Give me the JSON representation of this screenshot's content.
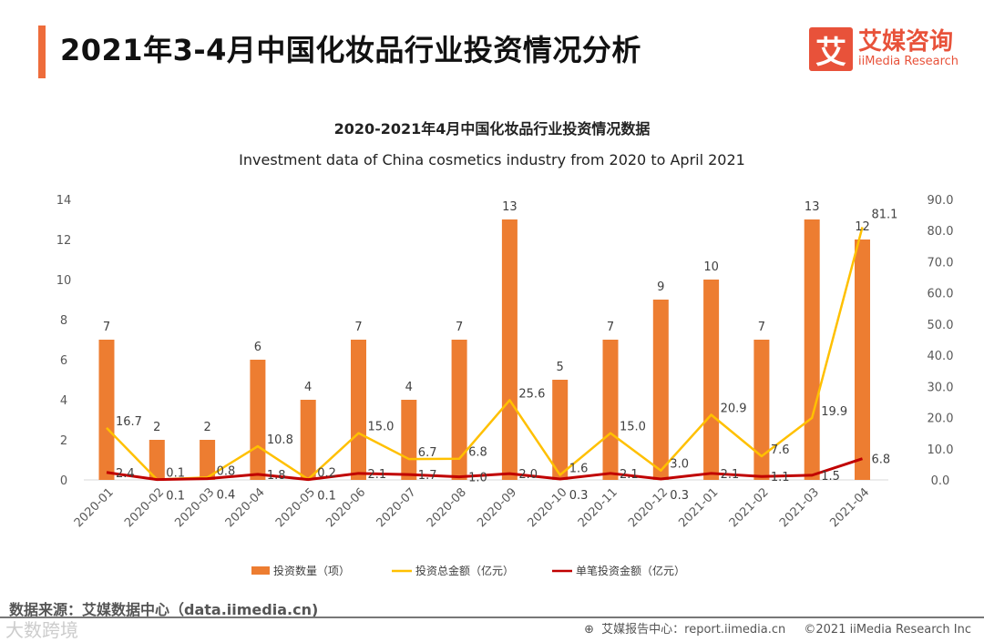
{
  "header": {
    "title": "2021年3-4月中国化妆品行业投资情况分析",
    "logo_mark": "艾",
    "logo_cn": "艾媒咨询",
    "logo_en": "iiMedia Research"
  },
  "footer": {
    "source": "数据来源：艾媒数据中心（data.iimedia.cn)",
    "watermark": "大数跨境",
    "report_center": "艾媒报告中心：report.iimedia.cn",
    "copyright": "©2021  iiMedia Research  Inc"
  },
  "colors": {
    "bar": "#ed7d31",
    "total": "#ffc000",
    "single": "#c00000",
    "accent": "#ee6c3b"
  },
  "chart_data": {
    "type": "bar+line",
    "title": "2020-2021年4月中国化妆品行业投资情况数据",
    "subtitle": "Investment data of China cosmetics industry from 2020 to April 2021",
    "categories": [
      "2020-01",
      "2020-02",
      "2020-03",
      "2020-04",
      "2020-05",
      "2020-06",
      "2020-07",
      "2020-08",
      "2020-09",
      "2020-10",
      "2020-11",
      "2020-12",
      "2021-01",
      "2021-02",
      "2021-03",
      "2021-04"
    ],
    "series": [
      {
        "name": "投资数量（项）",
        "type": "bar",
        "axis": "left",
        "values": [
          7,
          2,
          2,
          6,
          4,
          7,
          4,
          7,
          13,
          5,
          7,
          9,
          10,
          7,
          13,
          12
        ]
      },
      {
        "name": "投资总金额（亿元）",
        "type": "line",
        "axis": "right",
        "values": [
          16.7,
          0.1,
          0.8,
          10.8,
          0.2,
          15.0,
          6.7,
          6.8,
          25.6,
          1.6,
          15.0,
          3.0,
          20.9,
          7.6,
          19.9,
          81.1
        ]
      },
      {
        "name": "单笔投资金额（亿元）",
        "type": "line",
        "axis": "right",
        "values": [
          2.4,
          0.1,
          0.4,
          1.8,
          0.1,
          2.1,
          1.7,
          1.0,
          2.0,
          0.3,
          2.1,
          0.3,
          2.1,
          1.1,
          1.5,
          6.8
        ]
      }
    ],
    "left_axis": {
      "ylim": [
        0,
        14
      ],
      "ticks": [
        "0",
        "2",
        "4",
        "6",
        "8",
        "10",
        "12",
        "14"
      ]
    },
    "right_axis": {
      "ylim": [
        0,
        90
      ],
      "ticks": [
        "0.0",
        "10.0",
        "20.0",
        "30.0",
        "40.0",
        "50.0",
        "60.0",
        "70.0",
        "80.0",
        "90.0"
      ]
    },
    "legend_position": "bottom",
    "grid": false
  }
}
